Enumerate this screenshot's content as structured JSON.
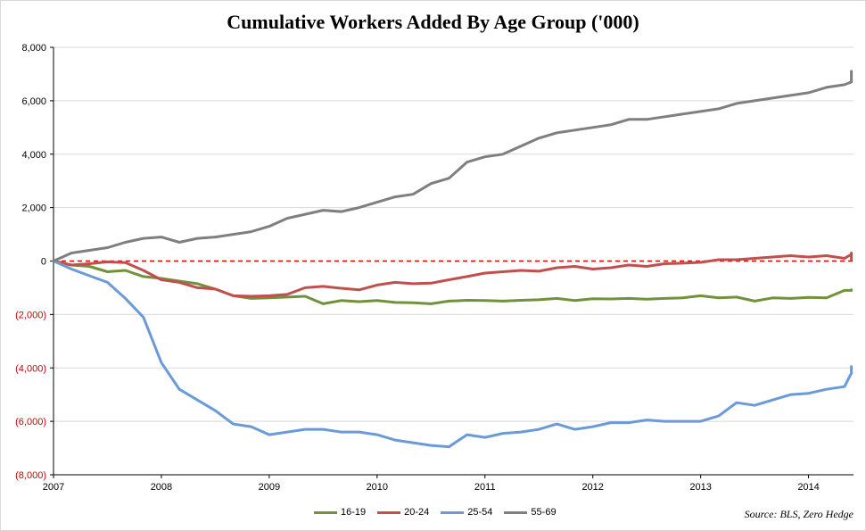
{
  "chart_data": {
    "type": "line",
    "title": "Cumulative Workers Added By Age Group ('000)",
    "ylim": [
      -8000,
      8000
    ],
    "y_ticks": [
      {
        "value": 8000,
        "label": "8,000",
        "color": "#000000"
      },
      {
        "value": 6000,
        "label": "6,000",
        "color": "#000000"
      },
      {
        "value": 4000,
        "label": "4,000",
        "color": "#000000"
      },
      {
        "value": 2000,
        "label": "2,000",
        "color": "#000000"
      },
      {
        "value": 0,
        "label": "0",
        "color": "#000000"
      },
      {
        "value": -2000,
        "label": "(2,000)",
        "color": "#cc0000"
      },
      {
        "value": -4000,
        "label": "(4,000)",
        "color": "#cc0000"
      },
      {
        "value": -6000,
        "label": "(6,000)",
        "color": "#cc0000"
      },
      {
        "value": -8000,
        "label": "(8,000)",
        "color": "#cc0000"
      }
    ],
    "x_ticks": [
      "2007",
      "2008",
      "2009",
      "2010",
      "2011",
      "2012",
      "2013",
      "2014"
    ],
    "xlim": [
      2007.0,
      2014.417
    ],
    "grid": "horizontal",
    "zero_line": {
      "style": "dashed",
      "color": "#dd0000"
    },
    "x_step_months": 2,
    "series": [
      {
        "name": "16-19",
        "color": "#71913a",
        "values": [
          0,
          -150,
          -200,
          -400,
          -350,
          -580,
          -650,
          -750,
          -850,
          -1050,
          -1300,
          -1400,
          -1380,
          -1350,
          -1320,
          -1600,
          -1480,
          -1520,
          -1480,
          -1550,
          -1560,
          -1600,
          -1500,
          -1470,
          -1480,
          -1500,
          -1470,
          -1450,
          -1400,
          -1480,
          -1410,
          -1420,
          -1400,
          -1430,
          -1400,
          -1380,
          -1300,
          -1380,
          -1350,
          -1500,
          -1380,
          -1400,
          -1360,
          -1380,
          -1100,
          -1100,
          -1080,
          -1100
        ]
      },
      {
        "name": "20-24",
        "color": "#c0504d",
        "values": [
          0,
          -150,
          -100,
          -30,
          -60,
          -350,
          -700,
          -800,
          -1000,
          -1050,
          -1300,
          -1320,
          -1300,
          -1250,
          -1000,
          -950,
          -1020,
          -1080,
          -900,
          -800,
          -850,
          -830,
          -700,
          -580,
          -450,
          -400,
          -350,
          -380,
          -250,
          -200,
          -300,
          -250,
          -150,
          -200,
          -100,
          -80,
          -50,
          50,
          50,
          100,
          150,
          200,
          150,
          200,
          100,
          250,
          300,
          50
        ]
      },
      {
        "name": "25-54",
        "color": "#6a9bd8",
        "values": [
          0,
          -300,
          -550,
          -800,
          -1400,
          -2100,
          -3800,
          -4800,
          -5200,
          -5600,
          -6100,
          -6200,
          -6500,
          -6400,
          -6300,
          -6300,
          -6400,
          -6400,
          -6500,
          -6700,
          -6800,
          -6900,
          -6950,
          -6500,
          -6600,
          -6450,
          -6400,
          -6300,
          -6100,
          -6300,
          -6200,
          -6050,
          -6050,
          -5950,
          -6000,
          -6000,
          -6000,
          -5800,
          -5300,
          -5400,
          -5200,
          -5000,
          -4950,
          -4800,
          -4700,
          -4200,
          -3950,
          -4000
        ]
      },
      {
        "name": "55-69",
        "color": "#7f7f7f",
        "values": [
          0,
          300,
          400,
          500,
          700,
          850,
          900,
          700,
          850,
          900,
          1000,
          1100,
          1300,
          1600,
          1750,
          1900,
          1850,
          2000,
          2200,
          2400,
          2500,
          2900,
          3100,
          3700,
          3900,
          4000,
          4300,
          4600,
          4800,
          4900,
          5000,
          5100,
          5300,
          5300,
          5400,
          5500,
          5600,
          5700,
          5900,
          6000,
          6100,
          6200,
          6300,
          6500,
          6600,
          6700,
          6800,
          7100
        ]
      }
    ]
  },
  "source_note": "Source: BLS, Zero Hedge"
}
